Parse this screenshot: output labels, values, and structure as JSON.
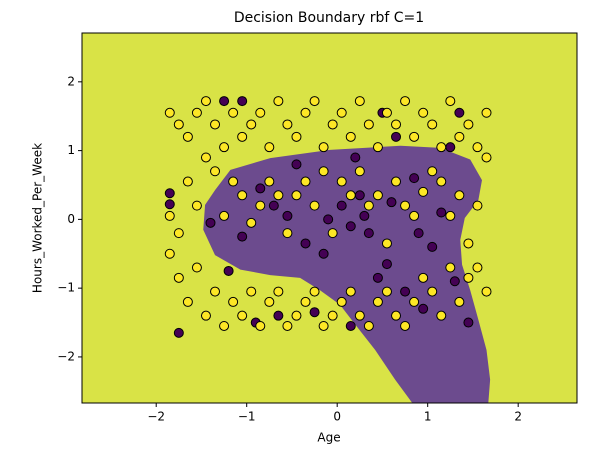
{
  "chart_data": {
    "type": "scatter",
    "title": "Decision Boundary rbf C=1",
    "x_label": "Age",
    "y_label": "Hours_Worked_Per_Week",
    "xlim": [
      -2.82,
      2.65
    ],
    "ylim": [
      -2.67,
      2.71
    ],
    "xticks": [
      {
        "value": -2,
        "label": "−2"
      },
      {
        "value": -1,
        "label": "−1"
      },
      0,
      1,
      2
    ],
    "yticks": [
      {
        "value": -2,
        "label": "−2"
      },
      {
        "value": -1,
        "label": "−1"
      },
      0,
      1,
      2
    ],
    "grid": false,
    "background_color": "#d9e346",
    "boundary": {
      "color": "#6c4b8e",
      "x": [
        -1.348,
        -1.18,
        -0.74,
        -0.08,
        0.7,
        1.14,
        1.47,
        1.6,
        1.56,
        1.41,
        1.36,
        1.38,
        1.47,
        1.56,
        1.65,
        1.69,
        1.67,
        0.83,
        0.64,
        0.42,
        0.2,
        0.03,
        -0.19,
        -0.41,
        -0.74,
        -1.07,
        -1.35,
        -1.48,
        -1.46
      ],
      "y": [
        0.429,
        0.72,
        0.89,
        1.01,
        1.07,
        1.04,
        0.87,
        0.57,
        0.28,
        0.02,
        -0.3,
        -0.66,
        -1.03,
        -1.46,
        -1.9,
        -2.33,
        -2.67,
        -2.67,
        -2.33,
        -1.9,
        -1.53,
        -1.24,
        -1.03,
        -0.85,
        -0.81,
        -0.73,
        -0.52,
        -0.15,
        0.21
      ]
    },
    "series": [
      {
        "color": "#440154",
        "x": [
          -1.85,
          -1.85,
          -1.75,
          -1.25,
          -1.05,
          -0.85,
          -0.55,
          -0.35,
          -0.15,
          0.05,
          0.15,
          0.25,
          0.35,
          0.45,
          0.55,
          0.65,
          0.75,
          0.85,
          0.95,
          1.05,
          1.15,
          1.25,
          1.35,
          1.45,
          -0.65,
          -0.25,
          0.15,
          -0.45,
          -1.05,
          -1.2,
          -0.9,
          0.5,
          -0.1,
          0.3,
          0.6,
          -0.7,
          0.9,
          1.3,
          -1.4,
          0.2
        ],
        "y": [
          0.38,
          0.22,
          -1.65,
          1.72,
          1.72,
          0.45,
          0.05,
          -0.35,
          -0.5,
          0.2,
          -0.1,
          0.35,
          -0.2,
          -0.85,
          -0.65,
          1.2,
          -1.05,
          0.6,
          -1.3,
          -0.4,
          0.1,
          1.05,
          1.55,
          -1.5,
          -1.4,
          -1.35,
          -1.55,
          0.8,
          -0.25,
          -0.75,
          -1.5,
          1.55,
          0.0,
          0.05,
          0.25,
          0.2,
          -0.2,
          -0.9,
          -0.05,
          0.9
        ]
      },
      {
        "color": "#fde725",
        "x": [
          -1.85,
          -1.75,
          -1.65,
          -1.55,
          -1.45,
          -1.35,
          -1.25,
          -1.15,
          -1.05,
          -0.95,
          -0.85,
          -0.75,
          -0.65,
          -0.55,
          -0.45,
          -0.35,
          -0.25,
          -0.15,
          -0.05,
          0.05,
          0.15,
          0.25,
          0.35,
          0.45,
          0.55,
          0.65,
          0.75,
          0.85,
          0.95,
          1.05,
          1.15,
          1.25,
          1.35,
          1.45,
          1.55,
          1.65,
          -1.85,
          -1.75,
          -1.65,
          -1.55,
          -1.45,
          -1.35,
          -1.25,
          -1.15,
          -1.05,
          -0.95,
          -0.85,
          -0.75,
          -0.65,
          -0.55,
          -0.45,
          -0.35,
          -0.25,
          -0.15,
          -0.05,
          0.05,
          0.15,
          0.25,
          0.35,
          0.45,
          0.55,
          0.65,
          0.75,
          0.85,
          0.95,
          1.05,
          1.15,
          1.25,
          1.35,
          1.45,
          1.55,
          1.65,
          -1.85,
          -1.75,
          -1.65,
          -1.55,
          -1.45,
          -1.35,
          -1.25,
          -1.15,
          -1.05,
          -0.95,
          -0.85,
          -0.75,
          -0.65,
          -0.55,
          -0.45,
          -0.35,
          -0.25,
          -0.15,
          -0.05,
          0.05,
          0.15,
          0.25,
          0.35,
          0.45,
          0.55,
          0.65,
          0.75,
          0.85,
          0.95,
          1.05,
          1.15,
          1.25,
          1.35,
          1.45,
          1.55,
          1.65
        ],
        "y": [
          1.55,
          1.38,
          1.2,
          1.55,
          1.72,
          1.38,
          1.05,
          1.55,
          1.2,
          1.38,
          1.55,
          1.05,
          1.72,
          1.38,
          1.2,
          1.55,
          1.72,
          1.05,
          1.38,
          1.55,
          1.2,
          1.72,
          1.38,
          1.05,
          1.55,
          1.38,
          1.72,
          1.2,
          1.55,
          1.38,
          1.05,
          1.72,
          1.2,
          1.38,
          1.05,
          1.55,
          -0.5,
          -0.85,
          -1.2,
          -0.7,
          -1.4,
          -1.05,
          -1.55,
          -1.2,
          -1.4,
          -1.05,
          -1.55,
          -1.2,
          -1.05,
          -1.55,
          -1.4,
          -1.2,
          -1.05,
          -1.55,
          -1.4,
          -1.2,
          -1.05,
          -1.4,
          -1.55,
          -1.2,
          -1.05,
          -1.4,
          -1.55,
          -1.2,
          -0.85,
          -1.05,
          -1.4,
          -0.7,
          -1.2,
          -0.85,
          -0.7,
          -1.05,
          0.05,
          -0.2,
          0.55,
          0.2,
          0.9,
          0.7,
          0.05,
          0.55,
          0.35,
          -0.05,
          0.2,
          0.55,
          0.35,
          -0.2,
          0.35,
          0.55,
          0.2,
          0.7,
          -0.2,
          0.55,
          0.35,
          0.7,
          0.2,
          0.35,
          -0.35,
          0.55,
          0.2,
          0.05,
          0.4,
          0.7,
          0.55,
          0.05,
          0.35,
          -0.35,
          0.2,
          0.9
        ]
      }
    ]
  }
}
